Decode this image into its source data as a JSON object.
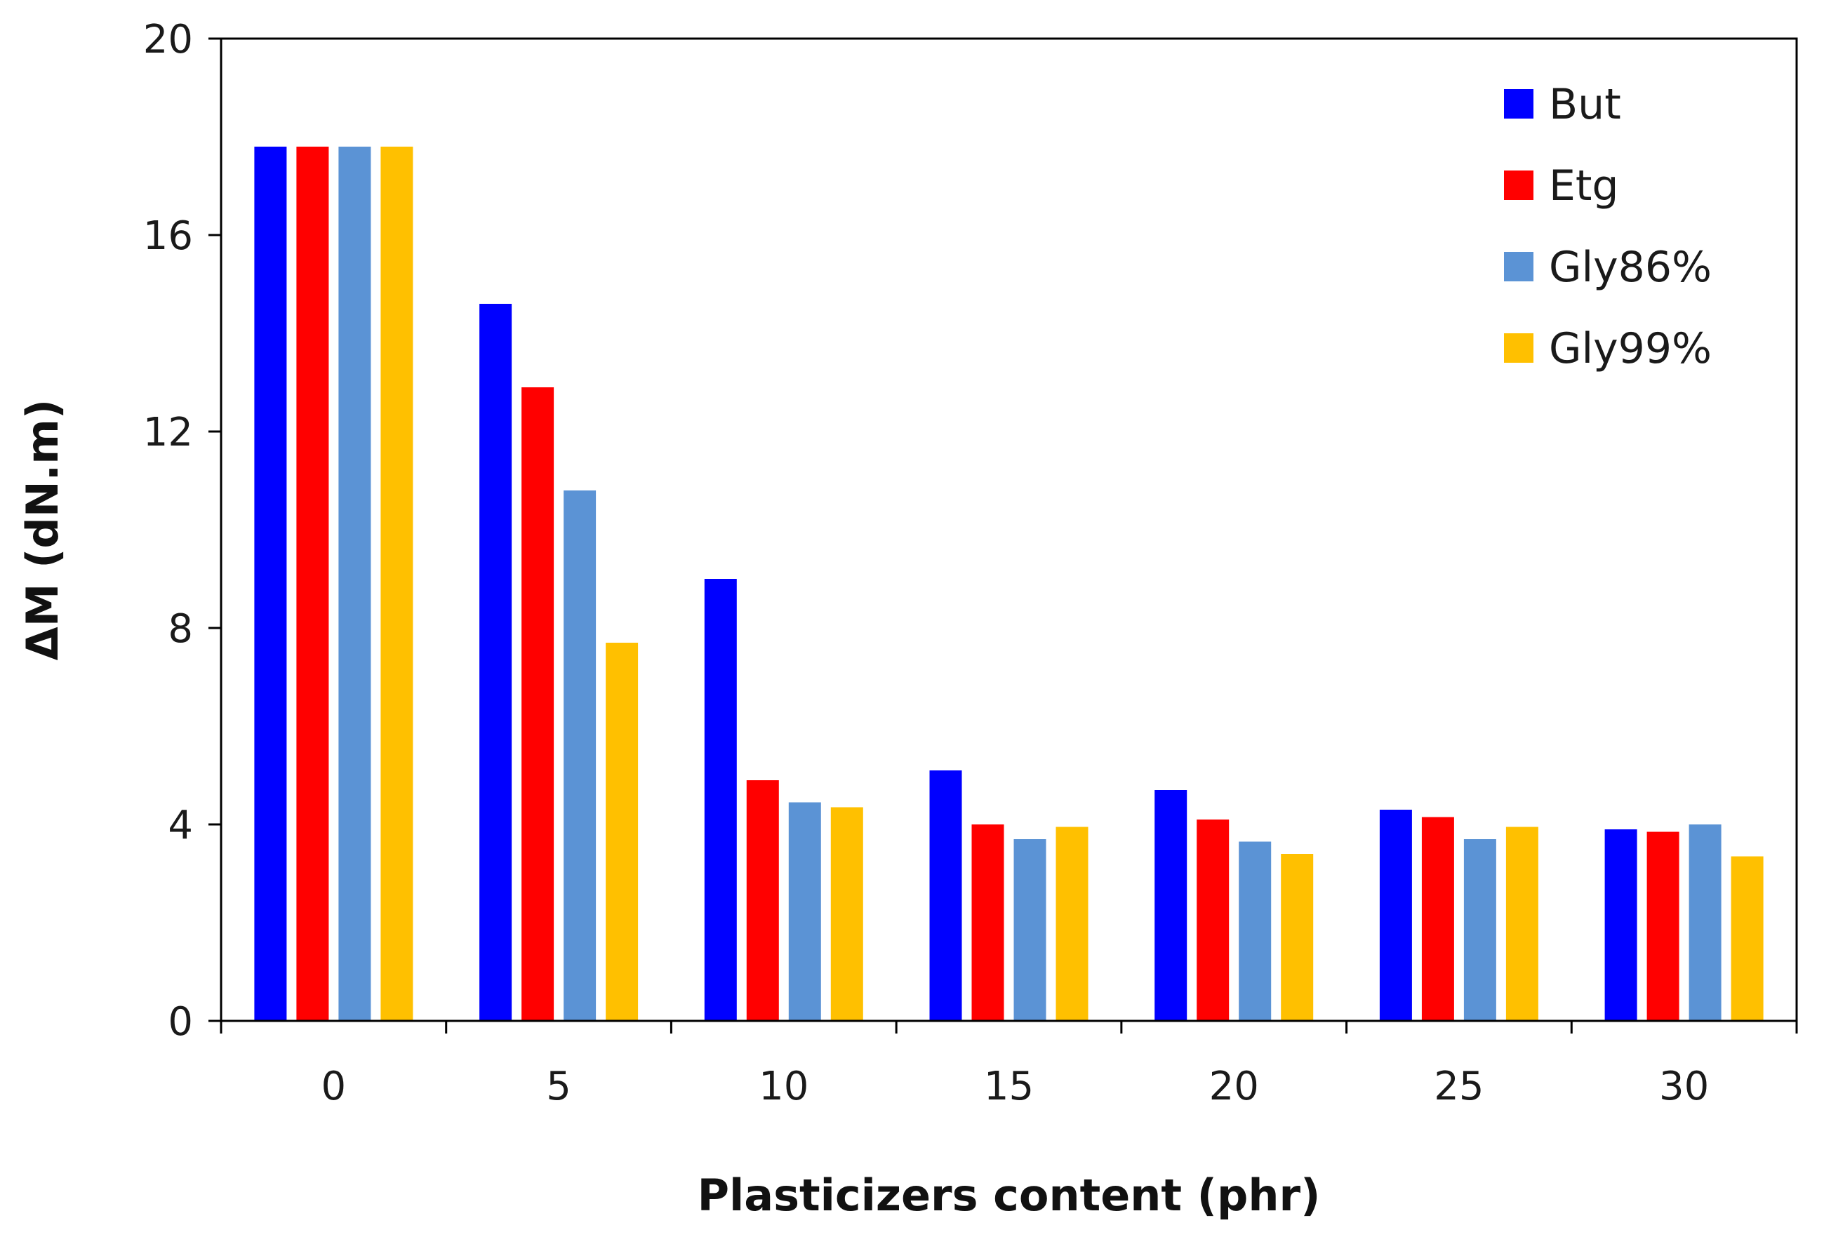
{
  "chart_data": {
    "type": "bar",
    "title": "",
    "xlabel": "Plasticizers content (phr)",
    "ylabel": "ΔM (dN.m)",
    "categories": [
      "0",
      "5",
      "10",
      "15",
      "20",
      "25",
      "30"
    ],
    "ylim": [
      0,
      20
    ],
    "yticks": [
      0,
      4,
      8,
      12,
      16,
      20
    ],
    "grid": false,
    "legend_position": "top-right",
    "series": [
      {
        "name": "But",
        "color": "#0000ff",
        "values": [
          17.8,
          14.6,
          9.0,
          5.1,
          4.7,
          4.3,
          3.9
        ]
      },
      {
        "name": "Etg",
        "color": "#ff0000",
        "values": [
          17.8,
          12.9,
          4.9,
          4.0,
          4.1,
          4.15,
          3.85
        ]
      },
      {
        "name": "Gly86%",
        "color": "#5b93d5",
        "values": [
          17.8,
          10.8,
          4.45,
          3.7,
          3.65,
          3.7,
          4.0
        ]
      },
      {
        "name": "Gly99%",
        "color": "#ffc000",
        "values": [
          17.8,
          7.7,
          4.35,
          3.95,
          3.4,
          3.95,
          3.35
        ]
      }
    ]
  }
}
